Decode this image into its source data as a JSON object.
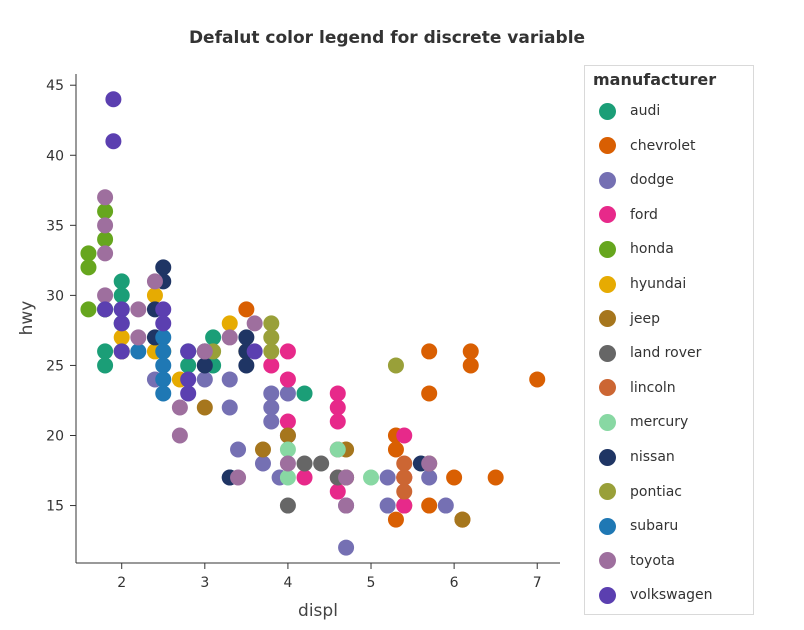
{
  "chart_data": {
    "type": "scatter",
    "title": "Defalut color legend for discrete variable",
    "xlabel": "displ",
    "ylabel": "hwy",
    "xlim": [
      1.45,
      7.25
    ],
    "ylim": [
      10.9,
      45.8
    ],
    "xticks": [
      2,
      3,
      4,
      5,
      6,
      7
    ],
    "yticks": [
      15,
      20,
      25,
      30,
      35,
      40,
      45
    ],
    "grid": false,
    "legend_placement": "right",
    "legend_title": "manufacturer",
    "colors": {
      "audi": "#1b9e77",
      "chevrolet": "#d95f02",
      "dodge": "#7570b3",
      "ford": "#e7298a",
      "honda": "#66a61e",
      "hyundai": "#e6ab02",
      "jeep": "#a6761d",
      "land rover": "#666666",
      "lincoln": "#cc6633",
      "mercury": "#88d8a3",
      "nissan": "#1f3564",
      "pontiac": "#99a039",
      "subaru": "#1f78b4",
      "toyota": "#9e6f9e",
      "volkswagen": "#5b3fb0"
    },
    "series": [
      {
        "name": "audi",
        "points": [
          [
            1.8,
            29
          ],
          [
            1.8,
            26
          ],
          [
            1.8,
            25
          ],
          [
            2.0,
            31
          ],
          [
            2.0,
            30
          ],
          [
            2.0,
            29
          ],
          [
            2.0,
            28
          ],
          [
            2.0,
            26
          ],
          [
            2.8,
            26
          ],
          [
            2.8,
            25
          ],
          [
            3.1,
            27
          ],
          [
            3.1,
            25
          ],
          [
            4.2,
            23
          ]
        ]
      },
      {
        "name": "chevrolet",
        "points": [
          [
            3.5,
            29
          ],
          [
            5.3,
            20
          ],
          [
            5.3,
            19
          ],
          [
            5.3,
            14
          ],
          [
            5.4,
            15
          ],
          [
            5.4,
            17
          ],
          [
            5.7,
            26
          ],
          [
            5.7,
            23
          ],
          [
            5.7,
            15
          ],
          [
            6.0,
            17
          ],
          [
            6.1,
            14
          ],
          [
            6.2,
            26
          ],
          [
            6.2,
            25
          ],
          [
            6.5,
            17
          ],
          [
            7.0,
            24
          ]
        ]
      },
      {
        "name": "dodge",
        "points": [
          [
            2.4,
            24
          ],
          [
            3.0,
            24
          ],
          [
            3.3,
            24
          ],
          [
            3.3,
            22
          ],
          [
            3.3,
            17
          ],
          [
            3.4,
            19
          ],
          [
            3.7,
            18
          ],
          [
            3.8,
            23
          ],
          [
            3.8,
            22
          ],
          [
            3.8,
            21
          ],
          [
            3.9,
            17
          ],
          [
            4.0,
            23
          ],
          [
            4.0,
            20
          ],
          [
            4.7,
            17
          ],
          [
            4.7,
            15
          ],
          [
            4.7,
            12
          ],
          [
            5.2,
            17
          ],
          [
            5.2,
            15
          ],
          [
            5.7,
            17
          ],
          [
            5.9,
            15
          ]
        ]
      },
      {
        "name": "ford",
        "points": [
          [
            3.8,
            25
          ],
          [
            4.0,
            26
          ],
          [
            4.0,
            24
          ],
          [
            4.0,
            21
          ],
          [
            4.2,
            17
          ],
          [
            4.6,
            23
          ],
          [
            4.6,
            22
          ],
          [
            4.6,
            21
          ],
          [
            4.6,
            19
          ],
          [
            4.6,
            17
          ],
          [
            4.6,
            16
          ],
          [
            5.4,
            20
          ],
          [
            5.4,
            17
          ],
          [
            5.4,
            15
          ]
        ]
      },
      {
        "name": "honda",
        "points": [
          [
            1.6,
            33
          ],
          [
            1.6,
            32
          ],
          [
            1.6,
            29
          ],
          [
            1.8,
            36
          ],
          [
            1.8,
            34
          ],
          [
            1.8,
            29
          ]
        ]
      },
      {
        "name": "hyundai",
        "points": [
          [
            2.0,
            27
          ],
          [
            2.0,
            26
          ],
          [
            2.4,
            30
          ],
          [
            2.4,
            26
          ],
          [
            2.5,
            26
          ],
          [
            2.7,
            24
          ],
          [
            3.3,
            28
          ],
          [
            3.5,
            26
          ]
        ]
      },
      {
        "name": "jeep",
        "points": [
          [
            3.0,
            22
          ],
          [
            3.7,
            19
          ],
          [
            4.0,
            20
          ],
          [
            4.7,
            19
          ],
          [
            4.7,
            17
          ],
          [
            5.7,
            18
          ],
          [
            6.1,
            14
          ]
        ]
      },
      {
        "name": "land rover",
        "points": [
          [
            4.0,
            15
          ],
          [
            4.2,
            18
          ],
          [
            4.4,
            18
          ],
          [
            4.6,
            17
          ]
        ]
      },
      {
        "name": "lincoln",
        "points": [
          [
            5.4,
            18
          ],
          [
            5.4,
            17
          ],
          [
            5.4,
            16
          ]
        ]
      },
      {
        "name": "mercury",
        "points": [
          [
            4.0,
            19
          ],
          [
            4.0,
            17
          ],
          [
            4.6,
            19
          ],
          [
            5.0,
            17
          ]
        ]
      },
      {
        "name": "nissan",
        "points": [
          [
            2.4,
            29
          ],
          [
            2.4,
            27
          ],
          [
            2.5,
            32
          ],
          [
            2.5,
            31
          ],
          [
            3.0,
            26
          ],
          [
            3.0,
            25
          ],
          [
            3.3,
            17
          ],
          [
            3.5,
            27
          ],
          [
            3.5,
            26
          ],
          [
            3.5,
            25
          ],
          [
            5.6,
            18
          ]
        ]
      },
      {
        "name": "pontiac",
        "points": [
          [
            3.1,
            26
          ],
          [
            3.8,
            28
          ],
          [
            3.8,
            27
          ],
          [
            3.8,
            26
          ],
          [
            5.3,
            25
          ]
        ]
      },
      {
        "name": "subaru",
        "points": [
          [
            2.2,
            26
          ],
          [
            2.5,
            27
          ],
          [
            2.5,
            26
          ],
          [
            2.5,
            25
          ],
          [
            2.5,
            24
          ],
          [
            2.5,
            23
          ]
        ]
      },
      {
        "name": "toyota",
        "points": [
          [
            1.8,
            37
          ],
          [
            1.8,
            35
          ],
          [
            1.8,
            33
          ],
          [
            1.8,
            30
          ],
          [
            2.2,
            29
          ],
          [
            2.2,
            27
          ],
          [
            2.4,
            31
          ],
          [
            2.7,
            22
          ],
          [
            2.7,
            20
          ],
          [
            3.0,
            26
          ],
          [
            3.4,
            17
          ],
          [
            3.3,
            27
          ],
          [
            3.6,
            28
          ],
          [
            4.0,
            18
          ],
          [
            4.7,
            17
          ],
          [
            4.7,
            15
          ],
          [
            5.7,
            18
          ]
        ]
      },
      {
        "name": "volkswagen",
        "points": [
          [
            1.9,
            44
          ],
          [
            1.9,
            41
          ],
          [
            1.8,
            29
          ],
          [
            2.0,
            29
          ],
          [
            2.0,
            28
          ],
          [
            2.0,
            26
          ],
          [
            2.5,
            29
          ],
          [
            2.5,
            28
          ],
          [
            2.8,
            26
          ],
          [
            2.8,
            24
          ],
          [
            2.8,
            23
          ],
          [
            3.6,
            26
          ]
        ]
      }
    ]
  }
}
